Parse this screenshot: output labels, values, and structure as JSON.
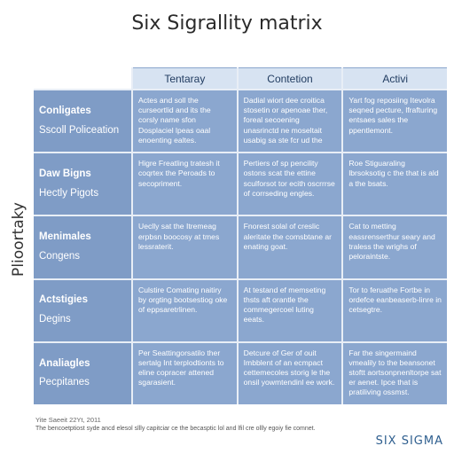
{
  "title": "Six Sigrallity matrix",
  "y_axis_label": "Plioortaky",
  "columns": [
    "Tentaray",
    "Contetion",
    "Activi"
  ],
  "rows": [
    {
      "head1": "Conligates",
      "head2": "Sscoll Policeation",
      "cells": [
        "Actes and soll the curseortlid and its the corsly name  sfon Dosplaciel lpeas oaal enoenting ealtes.",
        "Dadial wiort dee croitica stosetin or apenoae ther, foreal secoening unasrinctd ne moseltait usabig sa ste fcr ud the",
        "Yart fog reposiing Itevolra seqned pecture, lfrafturing entsaes sales the ppentlemont."
      ]
    },
    {
      "head1": "Daw Bigns",
      "head2": "Hectly Pigots",
      "cells": [
        "Higre Freatling tratesh it coqrtex the Peroads to secopriment.",
        "Pertiers of sp pencility ostons scat the ettine sculforsot tor ecith oscrrrse of corrseding engles.",
        "Roe Stiguaraling lbrsoksotig c the that is ald a the bsats."
      ]
    },
    {
      "head1": "Menimales",
      "head2": "Congens",
      "cells": [
        "Ueclly sat the Itremeag erpbsn boocosy at tmes lessraterit.",
        "Fnorest solal of creslic aleritate the comsbtane ar enating goat.",
        "Cat to metting eassrenserthur seary and traless the wrighs of peloraintste."
      ]
    },
    {
      "head1": "Actstigies",
      "head2": "Degins",
      "cells": [
        "Culstire Comating naitiry by orgting bootsestiog oke of eppsaretrlinen.",
        "At testand ef memseting thsts aft orantle the commegercoel luting eeats.",
        "Tor to feruathe Fortbe in ordefce eanbeaserb-linre in cetsegtre."
      ]
    },
    {
      "head1": "Analiagles",
      "head2": "Pecpitanes",
      "cells": [
        "Per Seattingorsatilo ther sertalg Int terplodtionts to eline copracer attened sgarasient.",
        "Detcure of Ger of ouit Imbblent of an ecmpact cettemecoles storig le the onsil yowmtendinl ee work.",
        "Far the singermaind vmealily to the beansonet stoftt aortsonpnenltorpe sat er aenet. Ipce that is pratiliving ossmst."
      ]
    }
  ],
  "footer": {
    "source": "Yite Saeeit 22Yt, 2011",
    "note": "The bencoetptiost syde ancd elesol sllly capitciar ce the becasptic lol and lfil cre ollly egoiy fie comnet."
  },
  "brand": "SIX SIGMA"
}
